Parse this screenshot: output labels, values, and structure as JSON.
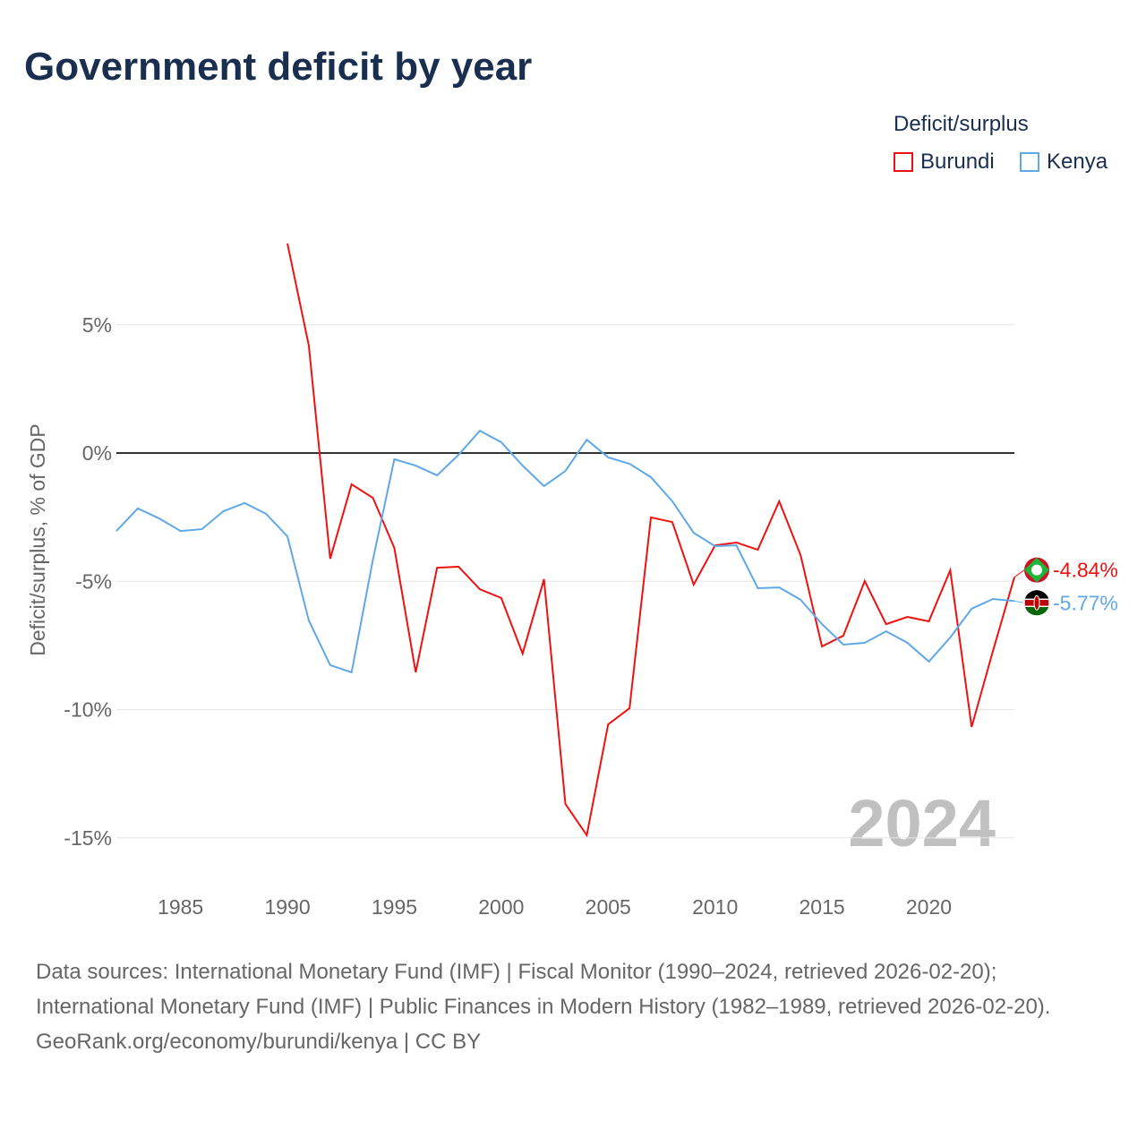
{
  "chart_data": {
    "type": "line",
    "title": "Government deficit by year",
    "ylabel": "Deficit/surplus, % of GDP",
    "xlabel": "",
    "xlim": [
      1982,
      2024
    ],
    "ylim": [
      -17,
      8.5
    ],
    "x_ticks": [
      1985,
      1990,
      1995,
      2000,
      2005,
      2010,
      2015,
      2020
    ],
    "x_tick_labels": [
      "1985",
      "1990",
      "1995",
      "2000",
      "2005",
      "2010",
      "2015",
      "2020"
    ],
    "y_ticks": [
      5,
      0,
      -5,
      -10,
      -15
    ],
    "y_tick_labels": [
      "5%",
      "0%",
      "-5%",
      "-10%",
      "-15%"
    ],
    "grid": true,
    "legend_title": "Deficit/surplus",
    "legend_position": "top-right",
    "year_watermark": "2024",
    "series": [
      {
        "name": "Burundi",
        "color": "#ee1111",
        "end_label": "-4.84%",
        "x": [
          1990,
          1991,
          1992,
          1993,
          1994,
          1995,
          1996,
          1997,
          1998,
          1999,
          2000,
          2001,
          2002,
          2003,
          2004,
          2005,
          2006,
          2007,
          2008,
          2009,
          2010,
          2011,
          2012,
          2013,
          2014,
          2015,
          2016,
          2017,
          2018,
          2019,
          2020,
          2021,
          2022,
          2023,
          2024
        ],
        "values": [
          8.17,
          4.19,
          -4.12,
          -1.22,
          -1.75,
          -3.7,
          -8.55,
          -4.47,
          -4.43,
          -5.31,
          -5.65,
          -7.82,
          -4.92,
          -13.68,
          -14.9,
          -10.58,
          -9.95,
          -2.51,
          -2.69,
          -5.13,
          -3.6,
          -3.49,
          -3.77,
          -1.88,
          -3.98,
          -7.54,
          -7.12,
          -4.99,
          -6.67,
          -6.39,
          -6.56,
          -4.57,
          -10.68,
          -7.71,
          -4.84
        ]
      },
      {
        "name": "Kenya",
        "color": "#5fa8e8",
        "end_label": "-5.77%",
        "x": [
          1982,
          1983,
          1984,
          1985,
          1986,
          1987,
          1988,
          1989,
          1990,
          1991,
          1992,
          1993,
          1994,
          1995,
          1996,
          1997,
          1998,
          1999,
          2000,
          2001,
          2002,
          2003,
          2004,
          2005,
          2006,
          2007,
          2008,
          2009,
          2010,
          2011,
          2012,
          2013,
          2014,
          2015,
          2016,
          2017,
          2018,
          2019,
          2020,
          2021,
          2022,
          2023,
          2024
        ],
        "values": [
          -3.04,
          -2.16,
          -2.55,
          -3.04,
          -2.97,
          -2.27,
          -1.95,
          -2.37,
          -3.25,
          -6.53,
          -8.27,
          -8.55,
          -4.15,
          -0.24,
          -0.49,
          -0.87,
          -0.07,
          0.87,
          0.42,
          -0.49,
          -1.29,
          -0.7,
          0.52,
          -0.17,
          -0.42,
          -0.94,
          -1.88,
          -3.11,
          -3.63,
          -3.6,
          -5.27,
          -5.24,
          -5.72,
          -6.67,
          -7.47,
          -7.4,
          -6.95,
          -7.4,
          -8.13,
          -7.19,
          -6.07,
          -5.69,
          -5.77
        ]
      }
    ]
  },
  "footer": {
    "sources": "Data sources: International Monetary Fund (IMF) | Fiscal Monitor (1990–2024, retrieved 2026-02-20); International Monetary Fund (IMF) | Public Finances in Modern History (1982–1989, retrieved 2026-02-20).",
    "credit": "GeoRank.org/economy/burundi/kenya | CC BY"
  }
}
